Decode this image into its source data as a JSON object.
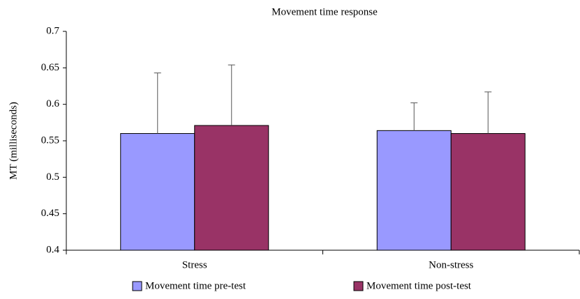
{
  "chart_data": {
    "type": "bar",
    "title": "Movement time response",
    "ylabel": "MT (milliseconds)",
    "categories": [
      "Stress",
      "Non-stress"
    ],
    "series": [
      {
        "name": "Movement time pre-test",
        "color": "#9999ff",
        "values": [
          0.56,
          0.564
        ],
        "errors": [
          0.083,
          0.038
        ]
      },
      {
        "name": "Movement time post-test",
        "color": "#993366",
        "values": [
          0.571,
          0.56
        ],
        "errors": [
          0.083,
          0.057
        ]
      }
    ],
    "ylim": [
      0.4,
      0.7
    ],
    "yticks": [
      0.4,
      0.45,
      0.5,
      0.55,
      0.6,
      0.65,
      0.7
    ],
    "grid": false
  }
}
